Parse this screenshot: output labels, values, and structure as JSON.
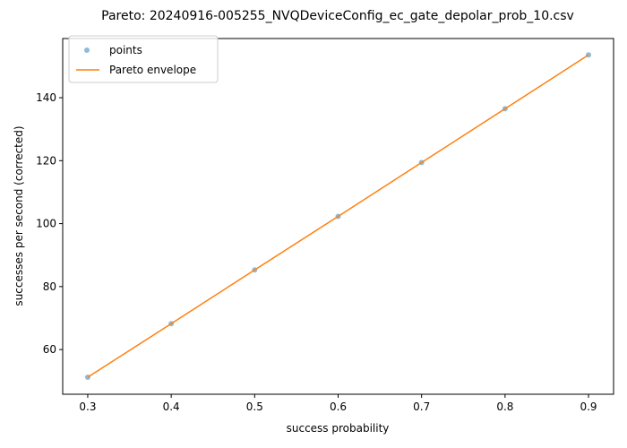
{
  "chart_data": {
    "type": "scatter",
    "title": "Pareto: 20240916-005255_NVQDeviceConfig_ec_gate_depolar_prob_10.csv",
    "xlabel": "success probability",
    "ylabel": "successes per second (corrected)",
    "xlim": [
      0.27,
      0.93
    ],
    "ylim": [
      45.8,
      158.8
    ],
    "x_ticks": [
      0.3,
      0.4,
      0.5,
      0.6,
      0.7,
      0.8,
      0.9
    ],
    "x_tick_labels": [
      "0.3",
      "0.4",
      "0.5",
      "0.6",
      "0.7",
      "0.8",
      "0.9"
    ],
    "y_ticks": [
      60,
      80,
      100,
      120,
      140
    ],
    "y_tick_labels": [
      "60",
      "80",
      "100",
      "120",
      "140"
    ],
    "grid": false,
    "legend": {
      "placement": "upper-left",
      "entries": [
        {
          "label": "points",
          "kind": "marker"
        },
        {
          "label": "Pareto envelope",
          "kind": "line"
        }
      ]
    },
    "series": [
      {
        "name": "points",
        "kind": "scatter",
        "color": "#1f77b4",
        "x": [
          0.3,
          0.4,
          0.5,
          0.6,
          0.7,
          0.8,
          0.9
        ],
        "y": [
          51.2,
          68.2,
          85.3,
          102.3,
          119.4,
          136.5,
          153.6
        ]
      },
      {
        "name": "Pareto envelope",
        "kind": "line",
        "color": "#ff7f0e",
        "x": [
          0.3,
          0.4,
          0.5,
          0.6,
          0.7,
          0.8,
          0.9
        ],
        "y": [
          51.2,
          68.2,
          85.3,
          102.3,
          119.4,
          136.5,
          153.6
        ]
      }
    ]
  }
}
